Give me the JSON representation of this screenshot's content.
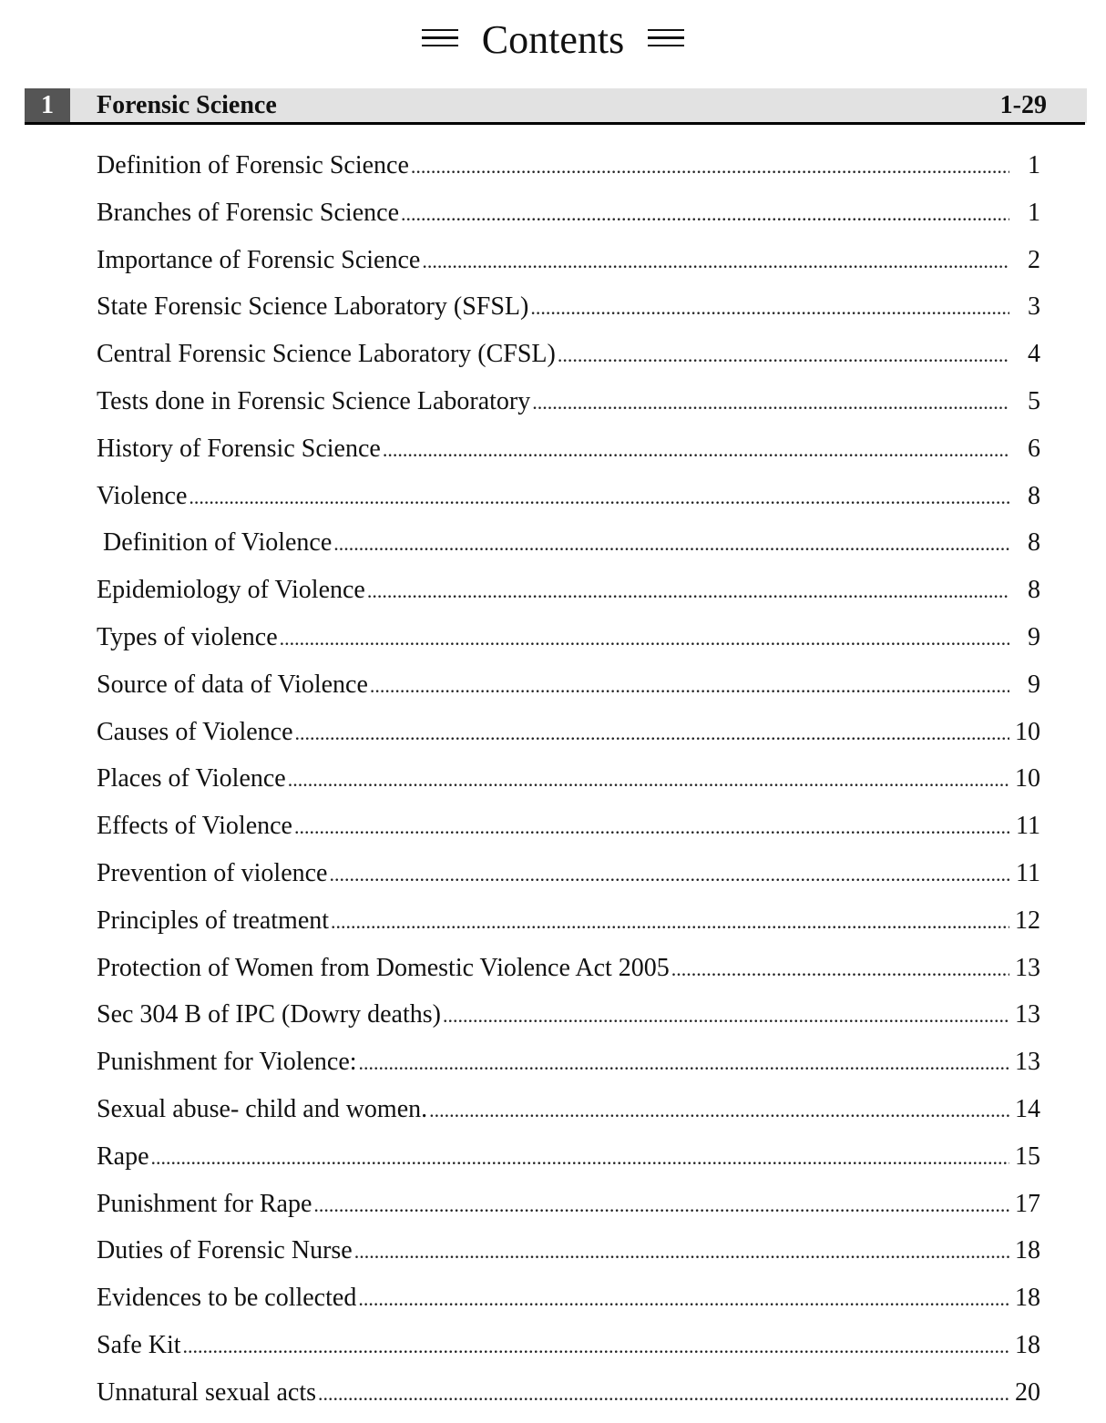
{
  "title": "Contents",
  "title_decoration_icon": "triple-line-icon",
  "chapter": {
    "number": "1",
    "name": "Forensic Science",
    "pages": "1-29"
  },
  "entries": [
    {
      "title": "Definition of Forensic Science",
      "page": "1"
    },
    {
      "title": "Branches of Forensic Science",
      "page": "1"
    },
    {
      "title": "Importance of Forensic Science",
      "page": "2"
    },
    {
      "title": "State Forensic Science Laboratory (SFSL)",
      "page": "3"
    },
    {
      "title": "Central Forensic Science Laboratory (CFSL)",
      "page": "4"
    },
    {
      "title": "Tests done in Forensic Science Laboratory",
      "page": "5"
    },
    {
      "title": "History of Forensic Science",
      "page": "6"
    },
    {
      "title": "Violence",
      "page": "8"
    },
    {
      "title": " Definition of Violence",
      "page": "8"
    },
    {
      "title": "Epidemiology of Violence",
      "page": "8"
    },
    {
      "title": "Types of violence",
      "page": "9"
    },
    {
      "title": "Source of data of Violence",
      "page": "9"
    },
    {
      "title": "Causes of Violence",
      "page": "10"
    },
    {
      "title": "Places of Violence",
      "page": "10"
    },
    {
      "title": "Effects of Violence",
      "page": "11"
    },
    {
      "title": "Prevention of violence",
      "page": "11"
    },
    {
      "title": "Principles of treatment",
      "page": "12"
    },
    {
      "title": "Protection of Women from Domestic Violence Act 2005",
      "page": "13"
    },
    {
      "title": "Sec 304 B of IPC (Dowry deaths)",
      "page": "13"
    },
    {
      "title": "Punishment for Violence:",
      "page": "13"
    },
    {
      "title": "Sexual abuse- child and women.",
      "page": "14"
    },
    {
      "title": "Rape",
      "page": "15"
    },
    {
      "title": "Punishment for Rape",
      "page": "17"
    },
    {
      "title": "Duties of Forensic Nurse",
      "page": "18"
    },
    {
      "title": "Evidences to be collected",
      "page": "18"
    },
    {
      "title": "Safe Kit",
      "page": "18"
    },
    {
      "title": "Unnatural sexual acts",
      "page": "20"
    }
  ]
}
